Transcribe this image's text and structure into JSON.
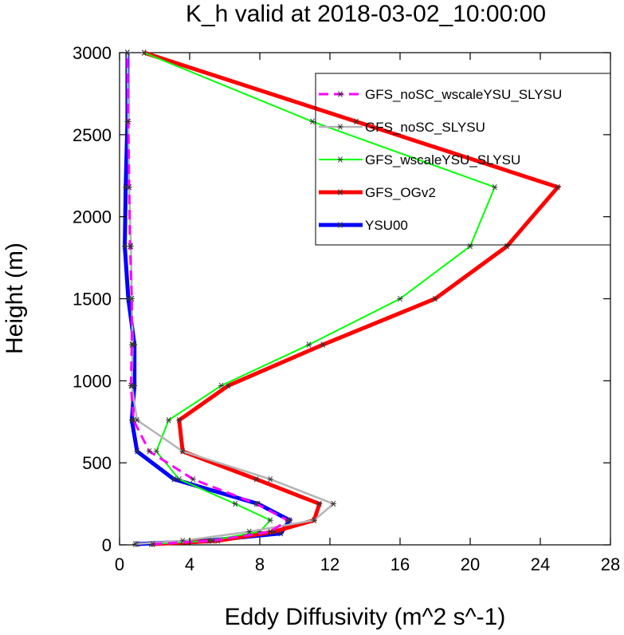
{
  "chart_data": {
    "type": "line",
    "title": "K_h valid at 2018-03-02_10:00:00",
    "xlabel": "Eddy Diffusivity (m^2 s^-1)",
    "ylabel": "Height (m)",
    "xlim": [
      0,
      28
    ],
    "ylim": [
      0,
      3000
    ],
    "x_ticks": [
      0,
      4,
      8,
      12,
      16,
      20,
      24,
      28
    ],
    "y_ticks": [
      0,
      500,
      1000,
      1500,
      2000,
      2500,
      3000
    ],
    "grid": false,
    "legend_position": "top-right",
    "series": [
      {
        "name": "GFS_noSC_wscaleYSU_SLYSU",
        "color": "#ff00ff",
        "dashed": true,
        "width": 3,
        "x": [
          1.9,
          5.3,
          8.6,
          9.6,
          7.8,
          4.2,
          1.7,
          0.8,
          0.65,
          0.7,
          0.7,
          0.6,
          0.55,
          0.5,
          0.45
        ],
        "y": [
          5,
          25,
          80,
          150,
          250,
          400,
          570,
          760,
          970,
          1220,
          1500,
          1820,
          2180,
          2580,
          3000
        ]
      },
      {
        "name": "GFS_noSC_SLYSU",
        "color": "#b4b4b4",
        "dashed": false,
        "width": 2.5,
        "x": [
          0.9,
          3.6,
          7.4,
          11.1,
          12.2,
          8.6,
          3.6,
          1.0,
          0.7,
          0.75,
          0.7,
          0.65,
          0.55,
          0.5,
          0.45
        ],
        "y": [
          5,
          25,
          80,
          150,
          250,
          400,
          570,
          760,
          970,
          1220,
          1500,
          1820,
          2180,
          2580,
          3000
        ]
      },
      {
        "name": "GFS_wscaleYSU_SLYSU",
        "color": "#00ff00",
        "dashed": false,
        "width": 2,
        "x": [
          1.8,
          5.1,
          8.0,
          8.6,
          6.6,
          3.4,
          2.1,
          2.8,
          5.8,
          10.8,
          16.0,
          20.0,
          21.4,
          11.0,
          1.4
        ],
        "y": [
          5,
          25,
          80,
          150,
          250,
          400,
          570,
          760,
          970,
          1220,
          1500,
          1820,
          2180,
          2580,
          3000
        ]
      },
      {
        "name": "GFS_OGv2",
        "color": "#ff0000",
        "dashed": false,
        "width": 5,
        "x": [
          1.9,
          5.6,
          8.8,
          11.1,
          11.4,
          7.8,
          3.6,
          3.4,
          6.2,
          11.6,
          18.0,
          22.1,
          25.0,
          13.5,
          1.4
        ],
        "y": [
          5,
          25,
          80,
          150,
          250,
          400,
          570,
          760,
          970,
          1220,
          1500,
          1820,
          2180,
          2580,
          3000
        ]
      },
      {
        "name": "YSU00",
        "color": "#0000ff",
        "dashed": false,
        "width": 5,
        "x": [
          1.0,
          5.0,
          9.2,
          9.7,
          7.9,
          3.1,
          1.0,
          0.7,
          0.85,
          0.85,
          0.5,
          0.3,
          0.35,
          0.45,
          0.45
        ],
        "y": [
          5,
          25,
          70,
          150,
          250,
          400,
          570,
          760,
          970,
          1220,
          1500,
          1820,
          2180,
          2580,
          3000
        ]
      }
    ]
  }
}
